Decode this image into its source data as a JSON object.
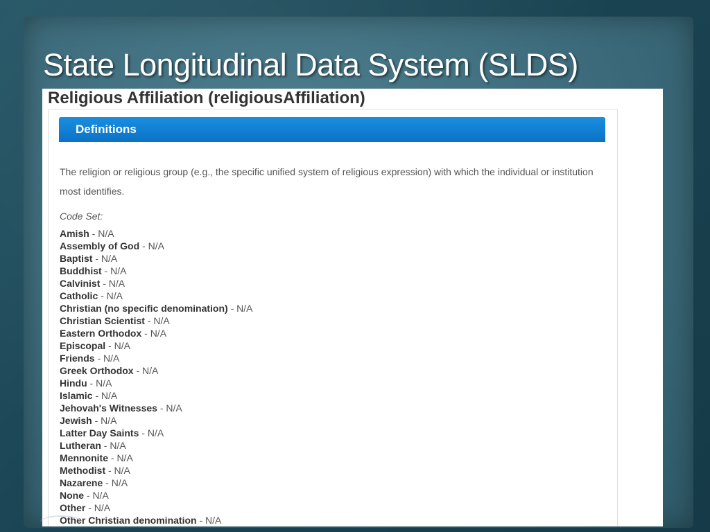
{
  "slide": {
    "title": "State Longitudinal Data System (SLDS)"
  },
  "document": {
    "heading": "Religious Affiliation (religiousAffiliation)",
    "panel_header": "Definitions",
    "definition": "The religion or religious group (e.g., the specific unified system of religious expression) with which the individual or institution most identifies.",
    "code_set_label": "Code Set:",
    "codes": [
      {
        "name": "Amish",
        "desc": " - N/A"
      },
      {
        "name": "Assembly of God",
        "desc": " - N/A"
      },
      {
        "name": "Baptist",
        "desc": " - N/A"
      },
      {
        "name": "Buddhist",
        "desc": " - N/A"
      },
      {
        "name": "Calvinist",
        "desc": " - N/A"
      },
      {
        "name": "Catholic",
        "desc": " - N/A"
      },
      {
        "name": "Christian (no specific denomination)",
        "desc": " - N/A"
      },
      {
        "name": "Christian Scientist",
        "desc": " - N/A"
      },
      {
        "name": "Eastern Orthodox",
        "desc": " - N/A"
      },
      {
        "name": "Episcopal",
        "desc": " - N/A"
      },
      {
        "name": "Friends",
        "desc": " - N/A"
      },
      {
        "name": "Greek Orthodox",
        "desc": " - N/A"
      },
      {
        "name": "Hindu",
        "desc": " - N/A"
      },
      {
        "name": "Islamic",
        "desc": " - N/A"
      },
      {
        "name": "Jehovah's Witnesses",
        "desc": " - N/A"
      },
      {
        "name": "Jewish",
        "desc": " - N/A"
      },
      {
        "name": "Latter Day Saints",
        "desc": " - N/A"
      },
      {
        "name": "Lutheran",
        "desc": " - N/A"
      },
      {
        "name": "Mennonite",
        "desc": " - N/A"
      },
      {
        "name": "Methodist",
        "desc": " - N/A"
      },
      {
        "name": "Nazarene",
        "desc": " - N/A"
      },
      {
        "name": "None",
        "desc": " - N/A"
      },
      {
        "name": "Other",
        "desc": " - N/A"
      },
      {
        "name": "Other Christian denomination",
        "desc": " - N/A"
      }
    ]
  }
}
